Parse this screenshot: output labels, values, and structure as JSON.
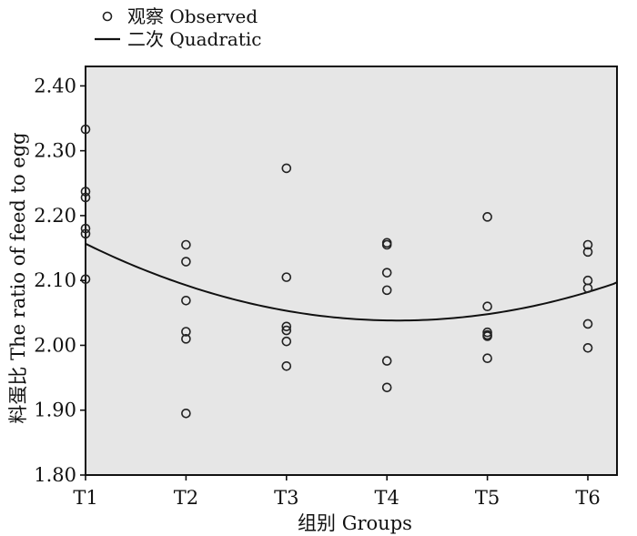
{
  "chart_data": {
    "type": "scatter",
    "legend": {
      "placement": "top-left",
      "entries": [
        {
          "marker": "circle",
          "label": "观察 Observed"
        },
        {
          "marker": "line",
          "label": "二次 Quadratic"
        }
      ]
    },
    "xlabel": "组别 Groups",
    "ylabel": "料蛋比 The ratio of feed to egg",
    "categories": [
      "T1",
      "T2",
      "T3",
      "T4",
      "T5",
      "T6"
    ],
    "ylim": [
      1.8,
      2.43
    ],
    "yticks": [
      "1.80",
      "1.90",
      "2.00",
      "2.10",
      "2.20",
      "2.30",
      "2.40"
    ],
    "grid": false,
    "background": "#e6e6e6",
    "series": [
      {
        "kind": "points",
        "points": [
          {
            "group": 1,
            "y": 2.333
          },
          {
            "group": 1,
            "y": 2.237
          },
          {
            "group": 1,
            "y": 2.228
          },
          {
            "group": 1,
            "y": 2.18
          },
          {
            "group": 1,
            "y": 2.172
          },
          {
            "group": 1,
            "y": 2.102
          },
          {
            "group": 2,
            "y": 2.155
          },
          {
            "group": 2,
            "y": 2.129
          },
          {
            "group": 2,
            "y": 2.069
          },
          {
            "group": 2,
            "y": 2.021
          },
          {
            "group": 2,
            "y": 2.01
          },
          {
            "group": 2,
            "y": 1.895
          },
          {
            "group": 3,
            "y": 2.273
          },
          {
            "group": 3,
            "y": 2.105
          },
          {
            "group": 3,
            "y": 2.029
          },
          {
            "group": 3,
            "y": 2.023
          },
          {
            "group": 3,
            "y": 2.006
          },
          {
            "group": 3,
            "y": 1.968
          },
          {
            "group": 4,
            "y": 2.158
          },
          {
            "group": 4,
            "y": 2.155
          },
          {
            "group": 4,
            "y": 2.112
          },
          {
            "group": 4,
            "y": 2.085
          },
          {
            "group": 4,
            "y": 1.976
          },
          {
            "group": 4,
            "y": 1.935
          },
          {
            "group": 5,
            "y": 2.198
          },
          {
            "group": 5,
            "y": 2.06
          },
          {
            "group": 5,
            "y": 2.02
          },
          {
            "group": 5,
            "y": 2.016
          },
          {
            "group": 5,
            "y": 2.014
          },
          {
            "group": 5,
            "y": 1.98
          },
          {
            "group": 6,
            "y": 2.155
          },
          {
            "group": 6,
            "y": 2.144
          },
          {
            "group": 6,
            "y": 2.1
          },
          {
            "group": 6,
            "y": 2.088
          },
          {
            "group": 6,
            "y": 2.033
          },
          {
            "group": 6,
            "y": 1.996
          }
        ]
      },
      {
        "kind": "quadratic-fit",
        "coefficients": {
          "a": 0.01226,
          "b": -0.10072,
          "c": 2.24509
        },
        "x_range": [
          1,
          6.3
        ]
      }
    ]
  }
}
